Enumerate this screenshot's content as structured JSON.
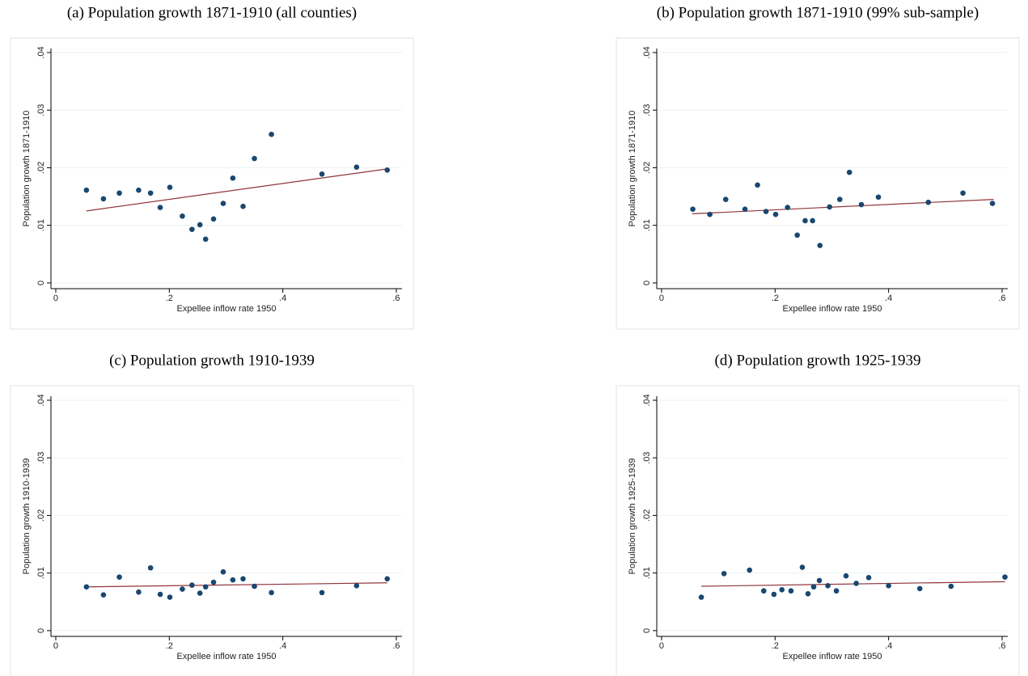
{
  "chart_data": [
    {
      "type": "scatter",
      "title": "(a) Population growth 1871-1910 (all counties)",
      "xlabel": "Expellee inflow rate 1950",
      "ylabel": "Population growth 1871-1910",
      "x": [
        0.054,
        0.084,
        0.112,
        0.146,
        0.167,
        0.184,
        0.201,
        0.223,
        0.24,
        0.254,
        0.264,
        0.278,
        0.295,
        0.312,
        0.33,
        0.35,
        0.38,
        0.469,
        0.53,
        0.584
      ],
      "y": [
        0.0161,
        0.0146,
        0.0156,
        0.0161,
        0.0156,
        0.0131,
        0.0166,
        0.0116,
        0.0093,
        0.0101,
        0.0076,
        0.0111,
        0.0138,
        0.0182,
        0.0133,
        0.0216,
        0.0258,
        0.0189,
        0.0201,
        0.0196
      ],
      "color": "#1a476f",
      "fit_x": [
        0.054,
        0.584
      ],
      "fit_y": [
        0.0125,
        0.0198
      ],
      "fit_color": "#90353b",
      "xlim": [
        -0.0085,
        0.61
      ],
      "ylim": [
        -0.001,
        0.0407
      ],
      "xticks": [
        0,
        {
          "value": 0.2,
          "label": ".2"
        },
        {
          "value": 0.4,
          "label": ".4"
        },
        {
          "value": 0.6,
          "label": ".6"
        }
      ],
      "yticks": [
        0,
        {
          "value": 0.01,
          "label": ".01"
        },
        {
          "value": 0.02,
          "label": ".02"
        },
        {
          "value": 0.03,
          "label": ".03"
        },
        {
          "value": 0.04,
          "label": ".04"
        }
      ],
      "grid": true
    },
    {
      "type": "scatter",
      "title": "(b) Population growth 1871-1910 (99% sub-sample)",
      "xlabel": "Expellee inflow rate 1950",
      "ylabel": "Population growth 1871-1910",
      "x": [
        0.055,
        0.085,
        0.113,
        0.147,
        0.169,
        0.184,
        0.201,
        0.222,
        0.239,
        0.253,
        0.266,
        0.279,
        0.296,
        0.314,
        0.331,
        0.352,
        0.382,
        0.47,
        0.531,
        0.583
      ],
      "y": [
        0.0128,
        0.0119,
        0.0145,
        0.0128,
        0.017,
        0.0124,
        0.0119,
        0.0131,
        0.0083,
        0.0108,
        0.0108,
        0.0065,
        0.0132,
        0.0145,
        0.0192,
        0.0136,
        0.0149,
        0.014,
        0.0156,
        0.0138
      ],
      "color": "#1a476f",
      "fit_x": [
        0.054,
        0.585
      ],
      "fit_y": [
        0.012,
        0.0145
      ],
      "fit_color": "#90353b",
      "xlim": [
        -0.0085,
        0.61
      ],
      "ylim": [
        -0.001,
        0.0407
      ],
      "xticks": [
        0,
        {
          "value": 0.2,
          "label": ".2"
        },
        {
          "value": 0.4,
          "label": ".4"
        },
        {
          "value": 0.6,
          "label": ".6"
        }
      ],
      "yticks": [
        0,
        {
          "value": 0.01,
          "label": ".01"
        },
        {
          "value": 0.02,
          "label": ".02"
        },
        {
          "value": 0.03,
          "label": ".03"
        },
        {
          "value": 0.04,
          "label": ".04"
        }
      ],
      "grid": true
    },
    {
      "type": "scatter",
      "title": "(c) Population growth 1910-1939",
      "xlabel": "Expellee inflow rate 1950",
      "ylabel": "Population growth 1910-1939",
      "x": [
        0.054,
        0.084,
        0.112,
        0.146,
        0.167,
        0.184,
        0.201,
        0.223,
        0.24,
        0.254,
        0.264,
        0.278,
        0.295,
        0.312,
        0.33,
        0.35,
        0.38,
        0.469,
        0.53,
        0.584
      ],
      "y": [
        0.0076,
        0.0062,
        0.0093,
        0.0067,
        0.0109,
        0.0063,
        0.0058,
        0.0072,
        0.0079,
        0.0065,
        0.0076,
        0.0084,
        0.0102,
        0.0088,
        0.009,
        0.0077,
        0.0066,
        0.0066,
        0.0078,
        0.009
      ],
      "color": "#1a476f",
      "fit_x": [
        0.054,
        0.584
      ],
      "fit_y": [
        0.0076,
        0.0083
      ],
      "fit_color": "#90353b",
      "xlim": [
        -0.0085,
        0.61
      ],
      "ylim": [
        -0.001,
        0.0407
      ],
      "xticks": [
        0,
        {
          "value": 0.2,
          "label": ".2"
        },
        {
          "value": 0.4,
          "label": ".4"
        },
        {
          "value": 0.6,
          "label": ".6"
        }
      ],
      "yticks": [
        0,
        {
          "value": 0.01,
          "label": ".01"
        },
        {
          "value": 0.02,
          "label": ".02"
        },
        {
          "value": 0.03,
          "label": ".03"
        },
        {
          "value": 0.04,
          "label": ".04"
        }
      ],
      "grid": true
    },
    {
      "type": "scatter",
      "title": "(d) Population growth 1925-1939",
      "xlabel": "Expellee inflow rate 1950",
      "ylabel": "Population growth 1925-1939",
      "x": [
        0.07,
        0.11,
        0.155,
        0.18,
        0.198,
        0.212,
        0.228,
        0.248,
        0.258,
        0.268,
        0.278,
        0.293,
        0.308,
        0.325,
        0.343,
        0.365,
        0.4,
        0.455,
        0.51,
        0.605
      ],
      "y": [
        0.0058,
        0.0099,
        0.0105,
        0.0069,
        0.0063,
        0.0071,
        0.0069,
        0.011,
        0.0064,
        0.0076,
        0.0087,
        0.0078,
        0.0069,
        0.0095,
        0.0082,
        0.0092,
        0.0078,
        0.0073,
        0.0077,
        0.0093
      ],
      "color": "#1a476f",
      "fit_x": [
        0.07,
        0.605
      ],
      "fit_y": [
        0.0077,
        0.0085
      ],
      "fit_color": "#90353b",
      "xlim": [
        -0.0085,
        0.61
      ],
      "ylim": [
        -0.001,
        0.0407
      ],
      "xticks": [
        0,
        {
          "value": 0.2,
          "label": ".2"
        },
        {
          "value": 0.4,
          "label": ".4"
        },
        {
          "value": 0.6,
          "label": ".6"
        }
      ],
      "yticks": [
        0,
        {
          "value": 0.01,
          "label": ".01"
        },
        {
          "value": 0.02,
          "label": ".02"
        },
        {
          "value": 0.03,
          "label": ".03"
        },
        {
          "value": 0.04,
          "label": ".04"
        }
      ],
      "grid": true
    }
  ]
}
